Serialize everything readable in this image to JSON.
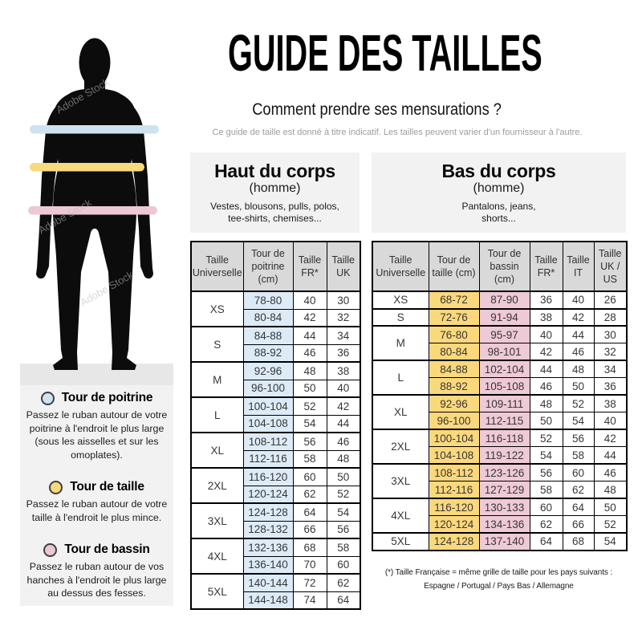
{
  "header": {
    "title": "GUIDE DES TAILLES",
    "subtitle": "Comment prendre ses mensurations ?",
    "disclaimer": "Ce guide de taille est donné à titre indicatif. Les tailles peuvent varier d'un fournisseur à l'autre."
  },
  "watermark": "Adobe Stock",
  "colors": {
    "silhouette": "#0c0c0c",
    "floor_bg": "#e7e7e7",
    "panel_bg": "#f2f2f2",
    "table_header_bg": "#d9d9d9",
    "band_chest": "#cde3f0",
    "band_waist": "#f8da7c",
    "band_hips": "#ecc8d5",
    "cell_chest": "#ddebf7",
    "cell_waist": "#fbd87c",
    "cell_hips": "#eec9d6"
  },
  "legend": {
    "items": [
      {
        "title": "Tour de poitrine",
        "description": "Passez le ruban autour de votre poitrine à l'endroit le plus large (sous les aisselles et sur les omoplates)."
      },
      {
        "title": "Tour de taille",
        "description": "Passez le ruban autour de votre taille à l'endroit le plus mince."
      },
      {
        "title": "Tour de bassin",
        "description": "Passez le ruban autour de vos hanches à l'endroit le plus large au dessus des fesses."
      }
    ]
  },
  "tables": {
    "upper": {
      "category": {
        "title": "Haut du corps",
        "gender": "(homme)",
        "items": "Vestes, blousons, pulls, polos,\ntee-shirts, chemises..."
      },
      "columns": [
        "Taille Universelle",
        "Tour de poitrine (cm)",
        "Taille FR*",
        "Taille UK"
      ],
      "highlight": {
        "0": "hl-chest"
      },
      "groups": [
        {
          "size": "XS",
          "rows": [
            [
              "78-80",
              "40",
              "30"
            ],
            [
              "80-84",
              "42",
              "32"
            ]
          ]
        },
        {
          "size": "S",
          "rows": [
            [
              "84-88",
              "44",
              "34"
            ],
            [
              "88-92",
              "46",
              "36"
            ]
          ]
        },
        {
          "size": "M",
          "rows": [
            [
              "92-96",
              "48",
              "38"
            ],
            [
              "96-100",
              "50",
              "40"
            ]
          ]
        },
        {
          "size": "L",
          "rows": [
            [
              "100-104",
              "52",
              "42"
            ],
            [
              "104-108",
              "54",
              "44"
            ]
          ]
        },
        {
          "size": "XL",
          "rows": [
            [
              "108-112",
              "56",
              "46"
            ],
            [
              "112-116",
              "58",
              "48"
            ]
          ]
        },
        {
          "size": "2XL",
          "rows": [
            [
              "116-120",
              "60",
              "50"
            ],
            [
              "120-124",
              "62",
              "52"
            ]
          ]
        },
        {
          "size": "3XL",
          "rows": [
            [
              "124-128",
              "64",
              "54"
            ],
            [
              "128-132",
              "66",
              "56"
            ]
          ]
        },
        {
          "size": "4XL",
          "rows": [
            [
              "132-136",
              "68",
              "58"
            ],
            [
              "136-140",
              "70",
              "60"
            ]
          ]
        },
        {
          "size": "5XL",
          "rows": [
            [
              "140-144",
              "72",
              "62"
            ],
            [
              "144-148",
              "74",
              "64"
            ]
          ]
        }
      ]
    },
    "lower": {
      "category": {
        "title": "Bas du corps",
        "gender": "(homme)",
        "items": "Pantalons, jeans,\nshorts..."
      },
      "columns": [
        "Taille Universelle",
        "Tour de taille (cm)",
        "Tour de bassin (cm)",
        "Taille FR*",
        "Taille IT",
        "Taille UK / US"
      ],
      "highlight": {
        "0": "hl-waist",
        "1": "hl-hips"
      },
      "groups": [
        {
          "size": "XS",
          "rows": [
            [
              "68-72",
              "87-90",
              "36",
              "40",
              "26"
            ]
          ]
        },
        {
          "size": "S",
          "rows": [
            [
              "72-76",
              "91-94",
              "38",
              "42",
              "28"
            ]
          ]
        },
        {
          "size": "M",
          "rows": [
            [
              "76-80",
              "95-97",
              "40",
              "44",
              "30"
            ],
            [
              "80-84",
              "98-101",
              "42",
              "46",
              "32"
            ]
          ]
        },
        {
          "size": "L",
          "rows": [
            [
              "84-88",
              "102-104",
              "44",
              "48",
              "34"
            ],
            [
              "88-92",
              "105-108",
              "46",
              "50",
              "36"
            ]
          ]
        },
        {
          "size": "XL",
          "rows": [
            [
              "92-96",
              "109-111",
              "48",
              "52",
              "38"
            ],
            [
              "96-100",
              "112-115",
              "50",
              "54",
              "40"
            ]
          ]
        },
        {
          "size": "2XL",
          "rows": [
            [
              "100-104",
              "116-118",
              "52",
              "56",
              "42"
            ],
            [
              "104-108",
              "119-122",
              "54",
              "58",
              "44"
            ]
          ]
        },
        {
          "size": "3XL",
          "rows": [
            [
              "108-112",
              "123-126",
              "56",
              "60",
              "46"
            ],
            [
              "112-116",
              "127-129",
              "58",
              "62",
              "48"
            ]
          ]
        },
        {
          "size": "4XL",
          "rows": [
            [
              "116-120",
              "130-133",
              "60",
              "64",
              "50"
            ],
            [
              "120-124",
              "134-136",
              "62",
              "66",
              "52"
            ]
          ]
        },
        {
          "size": "5XL",
          "rows": [
            [
              "124-128",
              "137-140",
              "64",
              "68",
              "54"
            ]
          ]
        }
      ]
    }
  },
  "footnote": {
    "line1": "(*) Taille Française = même grille de taille pour les pays suivants :",
    "line2": "Espagne / Portugal / Pays Bas / Allemagne"
  }
}
